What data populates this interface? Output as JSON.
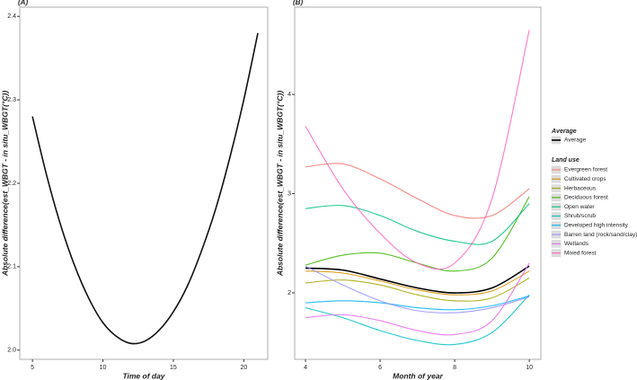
{
  "chart_data": [
    {
      "type": "line",
      "title": "(A)",
      "x_label": "Time of day",
      "y_label": "Absolute difference(est_WBGT - in situ_WBGT(°C))",
      "x": [
        5,
        6,
        7,
        8,
        9,
        10,
        11,
        12,
        13,
        14,
        15,
        16,
        17,
        18,
        19,
        20,
        21
      ],
      "series": [
        {
          "name": null,
          "color": "#111111",
          "values": [
            2.28,
            2.21,
            2.15,
            2.101,
            2.062,
            2.033,
            2.016,
            2.008,
            2.011,
            2.024,
            2.046,
            2.077,
            2.119,
            2.169,
            2.23,
            2.3,
            2.38
          ]
        }
      ],
      "xlim": [
        4.1,
        21.7
      ],
      "xticks": [
        5,
        10,
        15,
        20
      ],
      "ylim": [
        1.989,
        2.411
      ],
      "yticks": [
        {
          "value": 2,
          "label": "2.0"
        },
        2.1,
        2.2,
        2.3,
        2.4
      ]
    },
    {
      "type": "line",
      "title": "(B)",
      "x_label": "Month of year",
      "y_label": "Absolute difference(est_WBGT - in situ_WBGT(°C))",
      "x": [
        4,
        5,
        6,
        7,
        8,
        9,
        10
      ],
      "average_legend_title": "Average",
      "legend_title": "Land use",
      "series": [
        {
          "name": "Average",
          "color": "#000000",
          "values": [
            2.25,
            2.23,
            2.14,
            2.05,
            2.0,
            2.05,
            2.27
          ]
        },
        {
          "name": "Evergreen forest",
          "color": "#F8766D",
          "values": [
            3.27,
            3.3,
            3.15,
            2.95,
            2.78,
            2.78,
            3.05
          ]
        },
        {
          "name": "Cultivated crops",
          "color": "#D89000",
          "values": [
            2.22,
            2.2,
            2.12,
            2.03,
            1.98,
            2.02,
            2.22
          ]
        },
        {
          "name": "Herbaceous",
          "color": "#A3A500",
          "values": [
            2.1,
            2.13,
            2.08,
            1.98,
            1.92,
            1.95,
            2.15
          ]
        },
        {
          "name": "Deciduous forest",
          "color": "#39B600",
          "values": [
            2.28,
            2.38,
            2.4,
            2.3,
            2.22,
            2.35,
            2.97
          ]
        },
        {
          "name": "Open water",
          "color": "#00BF7D",
          "values": [
            2.85,
            2.88,
            2.78,
            2.62,
            2.52,
            2.52,
            2.9
          ]
        },
        {
          "name": "Shrub/scrub",
          "color": "#00BFC4",
          "values": [
            1.85,
            1.75,
            1.62,
            1.52,
            1.48,
            1.6,
            1.98
          ]
        },
        {
          "name": "Developed high intensity",
          "color": "#00B0F6",
          "values": [
            1.9,
            1.92,
            1.9,
            1.85,
            1.83,
            1.87,
            1.97
          ]
        },
        {
          "name": "Barren land (rock/sand/clay)",
          "color": "#9590FF",
          "values": [
            2.27,
            2.08,
            1.92,
            1.82,
            1.8,
            1.85,
            1.96
          ]
        },
        {
          "name": "Wetlands",
          "color": "#E76BF3",
          "values": [
            1.75,
            1.78,
            1.72,
            1.62,
            1.58,
            1.72,
            2.3
          ]
        },
        {
          "name": "Mixed forest",
          "color": "#FF62BC",
          "values": [
            3.68,
            3.05,
            2.6,
            2.3,
            2.3,
            2.95,
            4.65
          ]
        }
      ],
      "xlim": [
        3.71,
        10.31
      ],
      "xticks": [
        4,
        6,
        8,
        10
      ],
      "ylim": [
        1.33,
        4.88
      ],
      "yticks": [
        2,
        3,
        4
      ]
    }
  ]
}
